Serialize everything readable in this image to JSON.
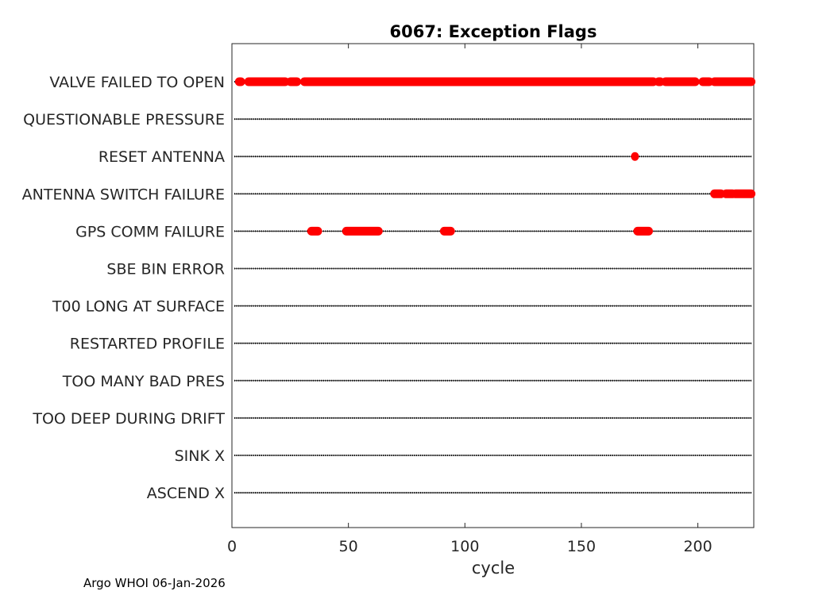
{
  "chart_data": {
    "type": "scatter",
    "title": "6067: Exception Flags",
    "xlabel": "cycle",
    "ylabel": "",
    "xlim": [
      0,
      224
    ],
    "xticks": [
      0,
      50,
      100,
      150,
      200
    ],
    "last_cycle": 223,
    "categories": [
      "VALVE FAILED TO OPEN",
      "QUESTIONABLE PRESSURE",
      "RESET ANTENNA",
      "ANTENNA SWITCH FAILURE",
      "GPS COMM FAILURE",
      "SBE BIN ERROR",
      "T00 LONG AT SURFACE",
      "RESTARTED PROFILE",
      "TOO MANY BAD PRES",
      "TOO DEEP DURING DRIFT",
      "SINK X",
      "ASCEND X"
    ],
    "series": [
      {
        "name": "VALVE FAILED TO OPEN",
        "color": "#ff0000",
        "ranges": [
          [
            3,
            4
          ],
          [
            7,
            23
          ],
          [
            25,
            28
          ],
          [
            31,
            181
          ],
          [
            183,
            184
          ],
          [
            186,
            199
          ],
          [
            202,
            205
          ],
          [
            207,
            223
          ]
        ]
      },
      {
        "name": "QUESTIONABLE PRESSURE",
        "color": "#ff0000",
        "ranges": []
      },
      {
        "name": "RESET ANTENNA",
        "color": "#ff0000",
        "ranges": [
          [
            173,
            173
          ]
        ]
      },
      {
        "name": "ANTENNA SWITCH FAILURE",
        "color": "#ff0000",
        "ranges": [
          [
            207,
            210
          ],
          [
            212,
            215
          ],
          [
            216,
            223
          ]
        ]
      },
      {
        "name": "GPS COMM FAILURE",
        "color": "#ff0000",
        "ranges": [
          [
            34,
            37
          ],
          [
            49,
            63
          ],
          [
            91,
            94
          ],
          [
            174,
            179
          ]
        ]
      },
      {
        "name": "SBE BIN ERROR",
        "color": "#ff0000",
        "ranges": []
      },
      {
        "name": "T00 LONG AT SURFACE",
        "color": "#ff0000",
        "ranges": []
      },
      {
        "name": "RESTARTED PROFILE",
        "color": "#ff0000",
        "ranges": []
      },
      {
        "name": "TOO MANY BAD PRES",
        "color": "#ff0000",
        "ranges": []
      },
      {
        "name": "TOO DEEP DURING DRIFT",
        "color": "#ff0000",
        "ranges": []
      },
      {
        "name": "SINK X",
        "color": "#ff0000",
        "ranges": []
      },
      {
        "name": "ASCEND X",
        "color": "#ff0000",
        "ranges": []
      }
    ],
    "baseline_color": "#000000"
  },
  "footer": {
    "credit": "Argo WHOI 06-Jan-2026"
  }
}
